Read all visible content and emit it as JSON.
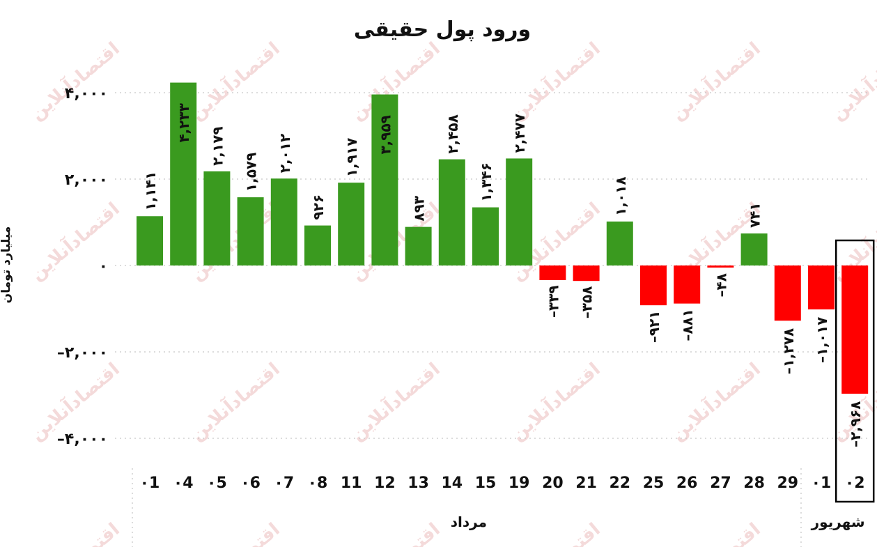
{
  "chart_data": {
    "type": "bar",
    "title": "ورود پول حقیقی",
    "ylabel": "میلیارد تومان",
    "xlabel": "",
    "ylim": [
      -4800,
      4600
    ],
    "yticks": [
      4000,
      2000,
      0,
      -2000,
      -4000
    ],
    "ytick_labels": [
      "۴,۰۰۰",
      "۲,۰۰۰",
      "۰",
      "–۲,۰۰۰",
      "–۴,۰۰۰"
    ],
    "categories": [
      "01",
      "04",
      "05",
      "06",
      "07",
      "08",
      "11",
      "12",
      "13",
      "14",
      "15",
      "19",
      "20",
      "21",
      "22",
      "25",
      "26",
      "27",
      "28",
      "29",
      "01",
      "02"
    ],
    "category_labels": [
      "۰1",
      "۰4",
      "۰5",
      "۰6",
      "۰7",
      "۰8",
      "11",
      "12",
      "13",
      "14",
      "15",
      "19",
      "20",
      "21",
      "22",
      "25",
      "26",
      "27",
      "28",
      "29",
      "۰1",
      "۰2"
    ],
    "values": [
      1141,
      4233,
      2179,
      1579,
      2012,
      926,
      1917,
      3959,
      893,
      2458,
      1346,
      2477,
      -339,
      -358,
      1018,
      -921,
      -881,
      -48,
      741,
      -1278,
      -1017,
      -2968
    ],
    "value_labels": [
      "۱,۱۴۱",
      "۴,۲۳۳",
      "۲,۱۷۹",
      "۱,۵۷۹",
      "۲,۰۱۲",
      "۹۲۶",
      "۱,۹۱۷",
      "۳,۹۵۹",
      "۸۹۳",
      "۲,۴۵۸",
      "۱,۳۴۶",
      "۲,۴۷۷",
      "–۳۳۹",
      "–۳۵۸",
      "۱,۰۱۸",
      "–۹۲۱",
      "–۸۸۱",
      "–۴۸",
      "۷۴۱",
      "–۱,۲۷۸",
      "–۱,۰۱۷",
      "–۲,۹۶۸"
    ],
    "groups": [
      {
        "label": "مرداد",
        "count": 20
      },
      {
        "label": "شهریور",
        "count": 2
      }
    ],
    "highlighted_category_index": 21,
    "grid": true,
    "colors": {
      "positive": "#3a9a1f",
      "negative": "#ff0000",
      "highlight_box": "#000000"
    }
  },
  "watermark": "اقتصادآنلاین"
}
